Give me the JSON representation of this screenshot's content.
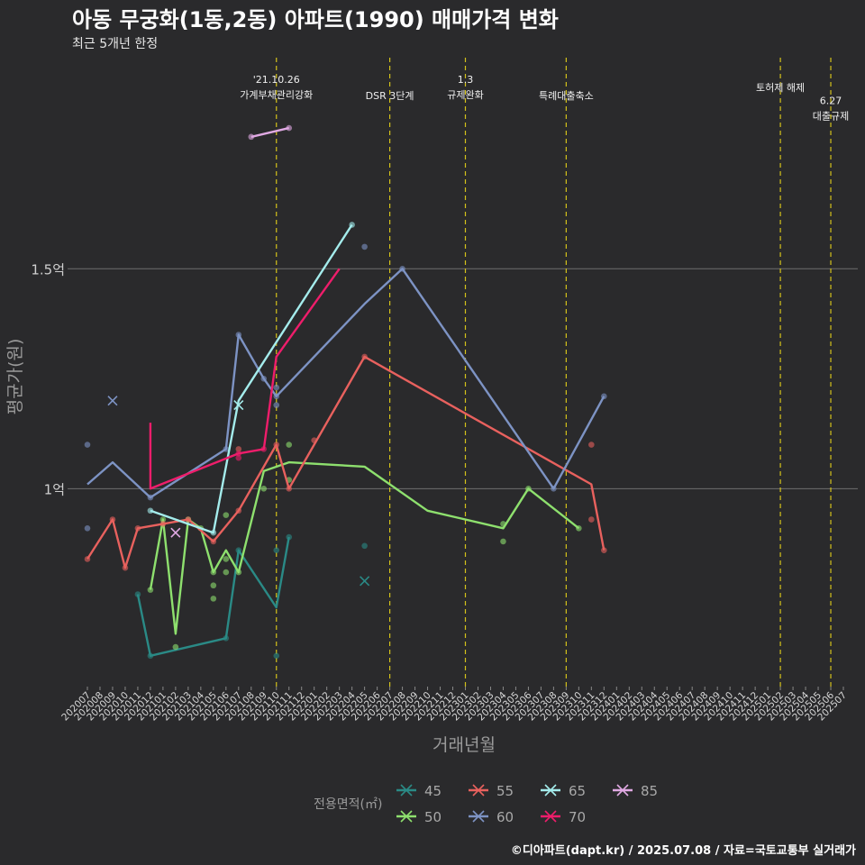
{
  "chart_data": {
    "type": "line",
    "title": "아동 무궁화(1동,2동) 아파트(1990) 매매가격 변화",
    "subtitle": "최근 5개년 한정",
    "xlabel": "거래년월",
    "ylabel": "평균가(원)",
    "ylim": [
      0.55,
      1.98
    ],
    "y_ticks": [
      {
        "value": 1.0,
        "label": "1억"
      },
      {
        "value": 1.5,
        "label": "1.5억"
      }
    ],
    "categories": [
      "202007",
      "202008",
      "202009",
      "202010",
      "202011",
      "202012",
      "202101",
      "202102",
      "202103",
      "202104",
      "202105",
      "202106",
      "202107",
      "202108",
      "202109",
      "202110",
      "202111",
      "202112",
      "202201",
      "202202",
      "202203",
      "202204",
      "202205",
      "202206",
      "202207",
      "202208",
      "202209",
      "202210",
      "202211",
      "202212",
      "202301",
      "202302",
      "202303",
      "202304",
      "202305",
      "202306",
      "202307",
      "202308",
      "202309",
      "202310",
      "202311",
      "202312",
      "202401",
      "202402",
      "202403",
      "202404",
      "202405",
      "202406",
      "202407",
      "202408",
      "202409",
      "202410",
      "202411",
      "202412",
      "202501",
      "202502",
      "202503",
      "202504",
      "202505",
      "202506",
      "202507"
    ],
    "legend_title": "전용면적(㎡)",
    "legend_position": "bottom",
    "series": [
      {
        "name": "45",
        "color": "#2a8a86",
        "line": [
          [
            "202011",
            0.76
          ],
          [
            "202012",
            0.62
          ],
          [
            "202106",
            0.66
          ],
          [
            "202107",
            0.86
          ],
          [
            "202110",
            0.73
          ],
          [
            "202111",
            0.89
          ]
        ],
        "points": [
          [
            "202011",
            0.76
          ],
          [
            "202012",
            0.62
          ],
          [
            "202106",
            0.66
          ],
          [
            "202107",
            0.86
          ],
          [
            "202110",
            0.86
          ],
          [
            "202110",
            0.62
          ],
          [
            "202111",
            0.89
          ],
          [
            "202205",
            0.87
          ]
        ],
        "crosses": [
          [
            "202205",
            0.79
          ]
        ]
      },
      {
        "name": "50",
        "color": "#8ee06e",
        "line": [
          [
            "202012",
            0.77
          ],
          [
            "202101",
            0.93
          ],
          [
            "202102",
            0.67
          ],
          [
            "202103",
            0.93
          ],
          [
            "202104",
            0.91
          ],
          [
            "202105",
            0.81
          ],
          [
            "202106",
            0.86
          ],
          [
            "202107",
            0.81
          ],
          [
            "202109",
            1.04
          ],
          [
            "202111",
            1.06
          ],
          [
            "202205",
            1.05
          ],
          [
            "202210",
            0.95
          ],
          [
            "202304",
            0.91
          ],
          [
            "202306",
            1.0
          ],
          [
            "202310",
            0.91
          ]
        ],
        "points": [
          [
            "202012",
            0.77
          ],
          [
            "202101",
            0.93
          ],
          [
            "202102",
            0.64
          ],
          [
            "202103",
            0.93
          ],
          [
            "202104",
            0.91
          ],
          [
            "202105",
            0.81
          ],
          [
            "202105",
            0.78
          ],
          [
            "202105",
            0.75
          ],
          [
            "202106",
            0.94
          ],
          [
            "202106",
            0.81
          ],
          [
            "202106",
            0.84
          ],
          [
            "202107",
            0.81
          ],
          [
            "202109",
            1.0
          ],
          [
            "202111",
            1.1
          ],
          [
            "202111",
            1.02
          ],
          [
            "202304",
            0.92
          ],
          [
            "202304",
            0.88
          ],
          [
            "202306",
            1.0
          ],
          [
            "202310",
            0.91
          ]
        ],
        "crosses": []
      },
      {
        "name": "55",
        "color": "#e8615e",
        "line": [
          [
            "202007",
            0.84
          ],
          [
            "202009",
            0.93
          ],
          [
            "202010",
            0.82
          ],
          [
            "202011",
            0.91
          ],
          [
            "202101",
            0.92
          ],
          [
            "202103",
            0.93
          ],
          [
            "202105",
            0.88
          ],
          [
            "202107",
            0.95
          ],
          [
            "202110",
            1.1
          ],
          [
            "202111",
            1.0
          ],
          [
            "202205",
            1.3
          ],
          [
            "202311",
            1.01
          ],
          [
            "202312",
            0.86
          ]
        ],
        "points": [
          [
            "202007",
            0.84
          ],
          [
            "202009",
            0.93
          ],
          [
            "202010",
            0.82
          ],
          [
            "202011",
            0.91
          ],
          [
            "202101",
            0.92
          ],
          [
            "202103",
            0.93
          ],
          [
            "202105",
            0.88
          ],
          [
            "202107",
            0.95
          ],
          [
            "202107",
            1.09
          ],
          [
            "202110",
            1.1
          ],
          [
            "202111",
            1.0
          ],
          [
            "202201",
            1.11
          ],
          [
            "202205",
            1.3
          ],
          [
            "202311",
            1.1
          ],
          [
            "202311",
            0.93
          ],
          [
            "202312",
            0.86
          ]
        ],
        "crosses": []
      },
      {
        "name": "60",
        "color": "#7d93c4",
        "line": [
          [
            "202007",
            1.01
          ],
          [
            "202009",
            1.06
          ],
          [
            "202012",
            0.98
          ],
          [
            "202106",
            1.09
          ],
          [
            "202107",
            1.35
          ],
          [
            "202109",
            1.25
          ],
          [
            "202110",
            1.21
          ],
          [
            "202205",
            1.42
          ],
          [
            "202208",
            1.5
          ],
          [
            "202308",
            1.0
          ],
          [
            "202312",
            1.21
          ]
        ],
        "points": [
          [
            "202007",
            1.1
          ],
          [
            "202007",
            0.91
          ],
          [
            "202012",
            0.98
          ],
          [
            "202106",
            1.09
          ],
          [
            "202107",
            1.35
          ],
          [
            "202109",
            1.25
          ],
          [
            "202110",
            1.21
          ],
          [
            "202110",
            1.23
          ],
          [
            "202110",
            1.19
          ],
          [
            "202205",
            1.55
          ],
          [
            "202208",
            1.5
          ],
          [
            "202308",
            1.0
          ],
          [
            "202312",
            1.21
          ]
        ],
        "crosses": [
          [
            "202009",
            1.2
          ]
        ]
      },
      {
        "name": "65",
        "color": "#a4ecec",
        "line": [
          [
            "202012",
            0.95
          ],
          [
            "202105",
            0.9
          ],
          [
            "202107",
            1.2
          ],
          [
            "202204",
            1.6
          ]
        ],
        "points": [
          [
            "202012",
            0.95
          ],
          [
            "202105",
            0.9
          ],
          [
            "202204",
            1.6
          ]
        ],
        "crosses": [
          [
            "202107",
            1.19
          ]
        ]
      },
      {
        "name": "70",
        "color": "#ef1d6b",
        "line": [
          [
            "202012",
            1.15
          ],
          [
            "202012",
            1.0
          ],
          [
            "202107",
            1.08
          ],
          [
            "202109",
            1.09
          ],
          [
            "202110",
            1.3
          ],
          [
            "202203",
            1.5
          ]
        ],
        "points": [
          [
            "202107",
            1.08
          ],
          [
            "202107",
            1.07
          ],
          [
            "202109",
            1.09
          ]
        ],
        "crosses": []
      },
      {
        "name": "85",
        "color": "#e0a9e3",
        "line": [
          [
            "202108",
            1.8
          ],
          [
            "202111",
            1.82
          ]
        ],
        "points": [
          [
            "202108",
            1.8
          ],
          [
            "202111",
            1.82
          ]
        ],
        "crosses": [
          [
            "202102",
            0.9
          ]
        ]
      }
    ],
    "annotations": [
      {
        "x": "202110",
        "lines": [
          "'21.10.26",
          "가계부채관리강화"
        ],
        "level": 0
      },
      {
        "x": "202207",
        "lines": [
          "DSR 3단계"
        ],
        "level": 1
      },
      {
        "x": "202301",
        "lines": [
          "1.3",
          "규제완화"
        ],
        "level": 0
      },
      {
        "x": "202309",
        "lines": [
          "특례대출축소"
        ],
        "level": 1
      },
      {
        "x": "202502",
        "lines": [
          "토허제 해제"
        ],
        "level": 0.5
      },
      {
        "x": "202506",
        "lines": [
          "6.27",
          "대출규제"
        ],
        "level": 1.3
      }
    ]
  },
  "legend": {
    "title": "전용면적(㎡)"
  },
  "footer": {
    "credit": "©디아파트(dapt.kr) / 2025.07.08 / 자료=국토교통부 실거래가"
  }
}
